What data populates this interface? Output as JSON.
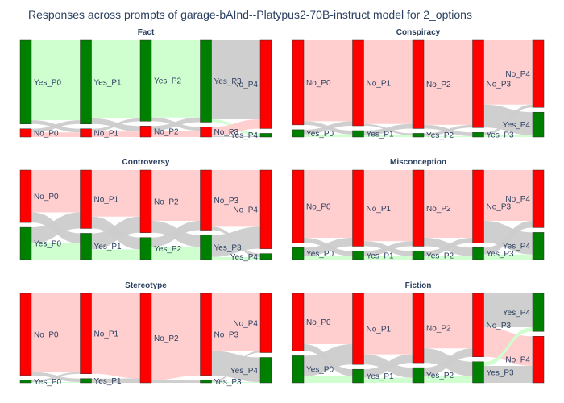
{
  "title": "Responses across prompts of garage-bAInd--Platypus2-70B-instruct model for 2_options",
  "colors": {
    "yes_node": "#008000",
    "no_node": "#ff0000",
    "yes_to_yes": "#ccffcc",
    "no_to_no": "#ffcccc",
    "switch": "#cccccc",
    "title": "#2a3f5f"
  },
  "chart_data": [
    {
      "type": "sankey",
      "title": "Fact",
      "nodes": [
        {
          "label": "Yes_P0",
          "stage": 0,
          "value": 91,
          "answer": "Yes"
        },
        {
          "label": "No_P0",
          "stage": 0,
          "value": 9,
          "answer": "No"
        },
        {
          "label": "Yes_P1",
          "stage": 1,
          "value": 91,
          "answer": "Yes"
        },
        {
          "label": "No_P1",
          "stage": 1,
          "value": 9,
          "answer": "No"
        },
        {
          "label": "Yes_P2",
          "stage": 2,
          "value": 88,
          "answer": "Yes"
        },
        {
          "label": "No_P2",
          "stage": 2,
          "value": 12,
          "answer": "No"
        },
        {
          "label": "Yes_P3",
          "stage": 3,
          "value": 89,
          "answer": "Yes"
        },
        {
          "label": "No_P3",
          "stage": 3,
          "value": 11,
          "answer": "No"
        },
        {
          "label": "No_P4",
          "stage": 4,
          "value": 96,
          "answer": "No"
        },
        {
          "label": "Yes_P4",
          "stage": 4,
          "value": 4,
          "answer": "Yes"
        }
      ],
      "links": [
        {
          "source": "Yes_P0",
          "target": "Yes_P1",
          "value": 87
        },
        {
          "source": "Yes_P0",
          "target": "No_P1",
          "value": 4
        },
        {
          "source": "No_P0",
          "target": "Yes_P1",
          "value": 4
        },
        {
          "source": "No_P0",
          "target": "No_P1",
          "value": 5
        },
        {
          "source": "Yes_P1",
          "target": "Yes_P2",
          "value": 85
        },
        {
          "source": "Yes_P1",
          "target": "No_P2",
          "value": 6
        },
        {
          "source": "No_P1",
          "target": "Yes_P2",
          "value": 3
        },
        {
          "source": "No_P1",
          "target": "No_P2",
          "value": 6
        },
        {
          "source": "Yes_P2",
          "target": "Yes_P3",
          "value": 84
        },
        {
          "source": "Yes_P2",
          "target": "No_P3",
          "value": 4
        },
        {
          "source": "No_P2",
          "target": "Yes_P3",
          "value": 5
        },
        {
          "source": "No_P2",
          "target": "No_P3",
          "value": 7
        },
        {
          "source": "Yes_P3",
          "target": "No_P4",
          "value": 86
        },
        {
          "source": "Yes_P3",
          "target": "Yes_P4",
          "value": 3
        },
        {
          "source": "No_P3",
          "target": "No_P4",
          "value": 10
        },
        {
          "source": "No_P3",
          "target": "Yes_P4",
          "value": 1
        }
      ]
    },
    {
      "type": "sankey",
      "title": "Conspiracy",
      "nodes": [
        {
          "label": "No_P0",
          "stage": 0,
          "value": 92,
          "answer": "No"
        },
        {
          "label": "Yes_P0",
          "stage": 0,
          "value": 8,
          "answer": "Yes"
        },
        {
          "label": "No_P1",
          "stage": 1,
          "value": 93,
          "answer": "No"
        },
        {
          "label": "Yes_P1",
          "stage": 1,
          "value": 7,
          "answer": "Yes"
        },
        {
          "label": "No_P2",
          "stage": 2,
          "value": 96,
          "answer": "No"
        },
        {
          "label": "Yes_P2",
          "stage": 2,
          "value": 4,
          "answer": "Yes"
        },
        {
          "label": "No_P3",
          "stage": 3,
          "value": 95,
          "answer": "No"
        },
        {
          "label": "Yes_P3",
          "stage": 3,
          "value": 5,
          "answer": "Yes"
        },
        {
          "label": "No_P4",
          "stage": 4,
          "value": 73,
          "answer": "No"
        },
        {
          "label": "Yes_P4",
          "stage": 4,
          "value": 27,
          "answer": "Yes"
        }
      ],
      "links": [
        {
          "source": "No_P0",
          "target": "No_P1",
          "value": 88
        },
        {
          "source": "No_P0",
          "target": "Yes_P1",
          "value": 4
        },
        {
          "source": "Yes_P0",
          "target": "No_P1",
          "value": 5
        },
        {
          "source": "Yes_P0",
          "target": "Yes_P1",
          "value": 3
        },
        {
          "source": "No_P1",
          "target": "No_P2",
          "value": 91
        },
        {
          "source": "No_P1",
          "target": "Yes_P2",
          "value": 2
        },
        {
          "source": "Yes_P1",
          "target": "No_P2",
          "value": 5
        },
        {
          "source": "Yes_P1",
          "target": "Yes_P2",
          "value": 2
        },
        {
          "source": "No_P2",
          "target": "No_P3",
          "value": 92
        },
        {
          "source": "No_P2",
          "target": "Yes_P3",
          "value": 4
        },
        {
          "source": "Yes_P2",
          "target": "No_P3",
          "value": 3
        },
        {
          "source": "Yes_P2",
          "target": "Yes_P3",
          "value": 1
        },
        {
          "source": "No_P3",
          "target": "No_P4",
          "value": 70
        },
        {
          "source": "No_P3",
          "target": "Yes_P4",
          "value": 25
        },
        {
          "source": "Yes_P3",
          "target": "No_P4",
          "value": 3
        },
        {
          "source": "Yes_P3",
          "target": "Yes_P4",
          "value": 2
        }
      ]
    },
    {
      "type": "sankey",
      "title": "Controversy",
      "nodes": [
        {
          "label": "No_P0",
          "stage": 0,
          "value": 62,
          "answer": "No"
        },
        {
          "label": "Yes_P0",
          "stage": 0,
          "value": 38,
          "answer": "Yes"
        },
        {
          "label": "No_P1",
          "stage": 1,
          "value": 69,
          "answer": "No"
        },
        {
          "label": "Yes_P1",
          "stage": 1,
          "value": 31,
          "answer": "Yes"
        },
        {
          "label": "No_P2",
          "stage": 2,
          "value": 74,
          "answer": "No"
        },
        {
          "label": "Yes_P2",
          "stage": 2,
          "value": 26,
          "answer": "Yes"
        },
        {
          "label": "No_P3",
          "stage": 3,
          "value": 71,
          "answer": "No"
        },
        {
          "label": "Yes_P3",
          "stage": 3,
          "value": 29,
          "answer": "Yes"
        },
        {
          "label": "No_P4",
          "stage": 4,
          "value": 93,
          "answer": "No"
        },
        {
          "label": "Yes_P4",
          "stage": 4,
          "value": 7,
          "answer": "Yes"
        }
      ],
      "links": [
        {
          "source": "No_P0",
          "target": "No_P1",
          "value": 50
        },
        {
          "source": "No_P0",
          "target": "Yes_P1",
          "value": 12
        },
        {
          "source": "Yes_P0",
          "target": "No_P1",
          "value": 19
        },
        {
          "source": "Yes_P0",
          "target": "Yes_P1",
          "value": 19
        },
        {
          "source": "No_P1",
          "target": "No_P2",
          "value": 55
        },
        {
          "source": "No_P1",
          "target": "Yes_P2",
          "value": 14
        },
        {
          "source": "Yes_P1",
          "target": "No_P2",
          "value": 19
        },
        {
          "source": "Yes_P1",
          "target": "Yes_P2",
          "value": 12
        },
        {
          "source": "No_P2",
          "target": "No_P3",
          "value": 60
        },
        {
          "source": "No_P2",
          "target": "Yes_P3",
          "value": 14
        },
        {
          "source": "Yes_P2",
          "target": "No_P3",
          "value": 11
        },
        {
          "source": "Yes_P2",
          "target": "Yes_P3",
          "value": 15
        },
        {
          "source": "No_P3",
          "target": "No_P4",
          "value": 67
        },
        {
          "source": "No_P3",
          "target": "Yes_P4",
          "value": 4
        },
        {
          "source": "Yes_P3",
          "target": "No_P4",
          "value": 26
        },
        {
          "source": "Yes_P3",
          "target": "Yes_P4",
          "value": 3
        }
      ]
    },
    {
      "type": "sankey",
      "title": "Misconception",
      "nodes": [
        {
          "label": "No_P0",
          "stage": 0,
          "value": 86,
          "answer": "No"
        },
        {
          "label": "Yes_P0",
          "stage": 0,
          "value": 14,
          "answer": "Yes"
        },
        {
          "label": "No_P1",
          "stage": 1,
          "value": 90,
          "answer": "No"
        },
        {
          "label": "Yes_P1",
          "stage": 1,
          "value": 10,
          "answer": "Yes"
        },
        {
          "label": "No_P2",
          "stage": 2,
          "value": 90,
          "answer": "No"
        },
        {
          "label": "Yes_P2",
          "stage": 2,
          "value": 10,
          "answer": "Yes"
        },
        {
          "label": "No_P3",
          "stage": 3,
          "value": 86,
          "answer": "No"
        },
        {
          "label": "Yes_P3",
          "stage": 3,
          "value": 14,
          "answer": "Yes"
        },
        {
          "label": "No_P4",
          "stage": 4,
          "value": 68,
          "answer": "No"
        },
        {
          "label": "Yes_P4",
          "stage": 4,
          "value": 32,
          "answer": "Yes"
        }
      ],
      "links": [
        {
          "source": "No_P0",
          "target": "No_P1",
          "value": 80
        },
        {
          "source": "No_P0",
          "target": "Yes_P1",
          "value": 6
        },
        {
          "source": "Yes_P0",
          "target": "No_P1",
          "value": 10
        },
        {
          "source": "Yes_P0",
          "target": "Yes_P1",
          "value": 4
        },
        {
          "source": "No_P1",
          "target": "No_P2",
          "value": 84
        },
        {
          "source": "No_P1",
          "target": "Yes_P2",
          "value": 6
        },
        {
          "source": "Yes_P1",
          "target": "No_P2",
          "value": 6
        },
        {
          "source": "Yes_P1",
          "target": "Yes_P2",
          "value": 4
        },
        {
          "source": "No_P2",
          "target": "No_P3",
          "value": 80
        },
        {
          "source": "No_P2",
          "target": "Yes_P3",
          "value": 10
        },
        {
          "source": "Yes_P2",
          "target": "No_P3",
          "value": 6
        },
        {
          "source": "Yes_P2",
          "target": "Yes_P3",
          "value": 4
        },
        {
          "source": "No_P3",
          "target": "No_P4",
          "value": 60
        },
        {
          "source": "No_P3",
          "target": "Yes_P4",
          "value": 26
        },
        {
          "source": "Yes_P3",
          "target": "No_P4",
          "value": 8
        },
        {
          "source": "Yes_P3",
          "target": "Yes_P4",
          "value": 6
        }
      ]
    },
    {
      "type": "sankey",
      "title": "Stereotype",
      "nodes": [
        {
          "label": "No_P0",
          "stage": 0,
          "value": 97,
          "answer": "No"
        },
        {
          "label": "Yes_P0",
          "stage": 0,
          "value": 3,
          "answer": "Yes"
        },
        {
          "label": "No_P1",
          "stage": 1,
          "value": 95,
          "answer": "No"
        },
        {
          "label": "Yes_P1",
          "stage": 1,
          "value": 5,
          "answer": "Yes"
        },
        {
          "label": "No_P2",
          "stage": 2,
          "value": 100,
          "answer": "No"
        },
        {
          "label": "No_P3",
          "stage": 3,
          "value": 97,
          "answer": "No"
        },
        {
          "label": "Yes_P3",
          "stage": 3,
          "value": 3,
          "answer": "Yes"
        },
        {
          "label": "No_P4",
          "stage": 4,
          "value": 70,
          "answer": "No"
        },
        {
          "label": "Yes_P4",
          "stage": 4,
          "value": 30,
          "answer": "Yes"
        }
      ],
      "links": [
        {
          "source": "No_P0",
          "target": "No_P1",
          "value": 93
        },
        {
          "source": "No_P0",
          "target": "Yes_P1",
          "value": 4
        },
        {
          "source": "Yes_P0",
          "target": "No_P1",
          "value": 2
        },
        {
          "source": "Yes_P0",
          "target": "Yes_P1",
          "value": 1
        },
        {
          "source": "No_P1",
          "target": "No_P2",
          "value": 95
        },
        {
          "source": "Yes_P1",
          "target": "No_P2",
          "value": 5
        },
        {
          "source": "No_P2",
          "target": "No_P3",
          "value": 97
        },
        {
          "source": "No_P2",
          "target": "Yes_P3",
          "value": 3
        },
        {
          "source": "No_P3",
          "target": "No_P4",
          "value": 68
        },
        {
          "source": "No_P3",
          "target": "Yes_P4",
          "value": 29
        },
        {
          "source": "Yes_P3",
          "target": "No_P4",
          "value": 2
        },
        {
          "source": "Yes_P3",
          "target": "Yes_P4",
          "value": 1
        }
      ]
    },
    {
      "type": "sankey",
      "title": "Fiction",
      "nodes": [
        {
          "label": "No_P0",
          "stage": 0,
          "value": 68,
          "answer": "No"
        },
        {
          "label": "Yes_P0",
          "stage": 0,
          "value": 32,
          "answer": "Yes"
        },
        {
          "label": "No_P1",
          "stage": 1,
          "value": 84,
          "answer": "No"
        },
        {
          "label": "Yes_P1",
          "stage": 1,
          "value": 16,
          "answer": "Yes"
        },
        {
          "label": "No_P2",
          "stage": 2,
          "value": 82,
          "answer": "No"
        },
        {
          "label": "Yes_P2",
          "stage": 2,
          "value": 18,
          "answer": "Yes"
        },
        {
          "label": "No_P3",
          "stage": 3,
          "value": 75,
          "answer": "No"
        },
        {
          "label": "Yes_P3",
          "stage": 3,
          "value": 25,
          "answer": "Yes"
        },
        {
          "label": "Yes_P4",
          "stage": 4,
          "value": 45,
          "answer": "Yes"
        },
        {
          "label": "No_P4",
          "stage": 4,
          "value": 55,
          "answer": "No"
        }
      ],
      "links": [
        {
          "source": "No_P0",
          "target": "No_P1",
          "value": 60
        },
        {
          "source": "No_P0",
          "target": "Yes_P1",
          "value": 8
        },
        {
          "source": "Yes_P0",
          "target": "No_P1",
          "value": 24
        },
        {
          "source": "Yes_P0",
          "target": "Yes_P1",
          "value": 8
        },
        {
          "source": "No_P1",
          "target": "No_P2",
          "value": 72
        },
        {
          "source": "No_P1",
          "target": "Yes_P2",
          "value": 12
        },
        {
          "source": "Yes_P1",
          "target": "No_P2",
          "value": 10
        },
        {
          "source": "Yes_P1",
          "target": "Yes_P2",
          "value": 6
        },
        {
          "source": "No_P2",
          "target": "No_P3",
          "value": 65
        },
        {
          "source": "No_P2",
          "target": "Yes_P3",
          "value": 17
        },
        {
          "source": "Yes_P2",
          "target": "No_P3",
          "value": 10
        },
        {
          "source": "Yes_P2",
          "target": "Yes_P3",
          "value": 8
        },
        {
          "source": "No_P3",
          "target": "Yes_P4",
          "value": 40
        },
        {
          "source": "No_P3",
          "target": "No_P4",
          "value": 35
        },
        {
          "source": "Yes_P3",
          "target": "Yes_P4",
          "value": 5
        },
        {
          "source": "Yes_P3",
          "target": "No_P4",
          "value": 20
        }
      ]
    }
  ]
}
